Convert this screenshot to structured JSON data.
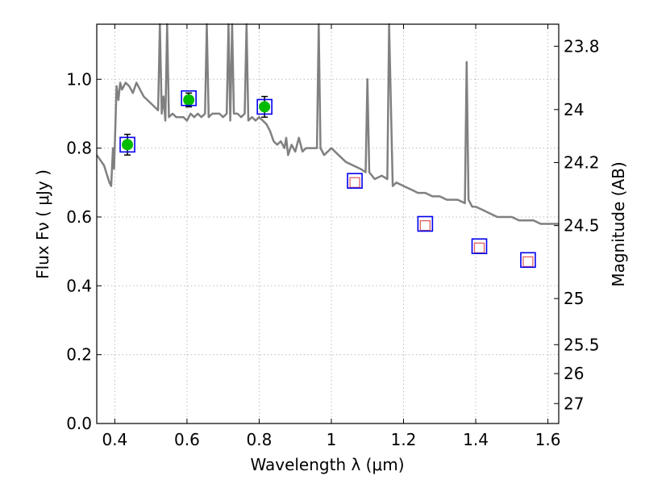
{
  "chart_data": {
    "type": "scatter",
    "xlabel": "Wavelength  λ (μm)",
    "ylabel": "Flux  Fν ( μJy )",
    "y2label": "Magnitude (AB)",
    "xlim": [
      0.35,
      1.63
    ],
    "ylim": [
      0.0,
      1.16
    ],
    "grid": true,
    "x_ticks": [
      0.4,
      0.6,
      0.8,
      1.0,
      1.2,
      1.4,
      1.6
    ],
    "x_tick_labels": [
      "0.4",
      "0.6",
      "0.8",
      "1",
      "1.2",
      "1.4",
      "1.6"
    ],
    "y_ticks": [
      0.0,
      0.2,
      0.4,
      0.6,
      0.8,
      1.0
    ],
    "y_tick_labels": [
      "0.0",
      "0.2",
      "0.4",
      "0.6",
      "0.8",
      "1.0"
    ],
    "y2_ticks": [
      {
        "label": "23.8",
        "flux": 1.096
      },
      {
        "label": "24",
        "flux": 0.912
      },
      {
        "label": "24.2",
        "flux": 0.758
      },
      {
        "label": "24.5",
        "flux": 0.575
      },
      {
        "label": "25",
        "flux": 0.363
      },
      {
        "label": "25.5",
        "flux": 0.229
      },
      {
        "label": "26",
        "flux": 0.145
      },
      {
        "label": "27",
        "flux": 0.058
      }
    ],
    "colors": {
      "model": "#808080",
      "detection": "#00bb00",
      "upper_limit_marker": "#e06060",
      "model_box": "#0000ee",
      "errorbar": "#000000",
      "grid": "#bdbdbd"
    },
    "series": [
      {
        "style": "line",
        "x": [
          0.35,
          0.37,
          0.385,
          0.39,
          0.395,
          0.398,
          0.405,
          0.41,
          0.415,
          0.42,
          0.43,
          0.44,
          0.45,
          0.46,
          0.47,
          0.48,
          0.49,
          0.5,
          0.51,
          0.52,
          0.525,
          0.53,
          0.535,
          0.54,
          0.545,
          0.55,
          0.56,
          0.57,
          0.58,
          0.59,
          0.6,
          0.61,
          0.62,
          0.63,
          0.64,
          0.65,
          0.655,
          0.66,
          0.67,
          0.68,
          0.69,
          0.7,
          0.71,
          0.715,
          0.72,
          0.725,
          0.73,
          0.74,
          0.75,
          0.76,
          0.765,
          0.77,
          0.78,
          0.79,
          0.8,
          0.81,
          0.82,
          0.83,
          0.84,
          0.85,
          0.86,
          0.87,
          0.875,
          0.88,
          0.89,
          0.9,
          0.91,
          0.92,
          0.93,
          0.94,
          0.95,
          0.96,
          0.965,
          0.97,
          0.975,
          0.98,
          1.0,
          1.02,
          1.04,
          1.06,
          1.08,
          1.095,
          1.1,
          1.105,
          1.12,
          1.14,
          1.155,
          1.16,
          1.17,
          1.18,
          1.2,
          1.22,
          1.24,
          1.26,
          1.28,
          1.3,
          1.32,
          1.35,
          1.37,
          1.375,
          1.38,
          1.39,
          1.4,
          1.42,
          1.44,
          1.46,
          1.48,
          1.5,
          1.52,
          1.54,
          1.56,
          1.58,
          1.6,
          1.63
        ],
        "y": [
          0.78,
          0.75,
          0.7,
          0.69,
          0.8,
          0.74,
          0.98,
          0.94,
          0.99,
          0.97,
          0.99,
          0.98,
          0.96,
          0.99,
          0.97,
          0.95,
          0.94,
          0.93,
          0.92,
          0.91,
          1.16,
          0.9,
          0.95,
          0.88,
          1.16,
          0.89,
          0.9,
          0.89,
          0.89,
          0.89,
          0.88,
          0.9,
          0.89,
          0.9,
          0.89,
          0.9,
          1.16,
          0.89,
          0.9,
          0.9,
          0.9,
          0.89,
          0.9,
          1.16,
          0.88,
          1.16,
          0.9,
          0.9,
          0.89,
          0.9,
          1.16,
          0.88,
          0.89,
          0.88,
          0.89,
          0.88,
          0.87,
          0.85,
          0.82,
          0.81,
          0.82,
          0.8,
          0.83,
          0.78,
          0.81,
          0.79,
          0.83,
          0.79,
          0.8,
          0.8,
          0.8,
          0.8,
          1.16,
          0.8,
          0.79,
          0.78,
          0.8,
          0.78,
          0.76,
          0.75,
          0.74,
          0.73,
          1.0,
          0.73,
          0.71,
          0.72,
          0.71,
          1.16,
          0.69,
          0.7,
          0.69,
          0.68,
          0.67,
          0.67,
          0.66,
          0.66,
          0.65,
          0.65,
          0.64,
          1.05,
          0.65,
          0.63,
          0.63,
          0.62,
          0.61,
          0.6,
          0.6,
          0.6,
          0.59,
          0.59,
          0.59,
          0.58,
          0.58,
          0.58
        ]
      },
      {
        "style": "points",
        "marker": "circle",
        "x": [
          0.435,
          0.605,
          0.815
        ],
        "y": [
          0.81,
          0.94,
          0.92
        ],
        "yerr": [
          0.03,
          0.02,
          0.03
        ]
      },
      {
        "style": "points",
        "marker": "open-square",
        "x": [
          1.065,
          1.26,
          1.41,
          1.545
        ],
        "y": [
          0.7,
          0.575,
          0.51,
          0.47
        ]
      },
      {
        "style": "points",
        "marker": "box",
        "x": [
          0.435,
          0.605,
          0.815,
          1.065,
          1.26,
          1.41,
          1.545
        ],
        "y": [
          0.81,
          0.945,
          0.92,
          0.705,
          0.58,
          0.515,
          0.475
        ]
      }
    ]
  }
}
